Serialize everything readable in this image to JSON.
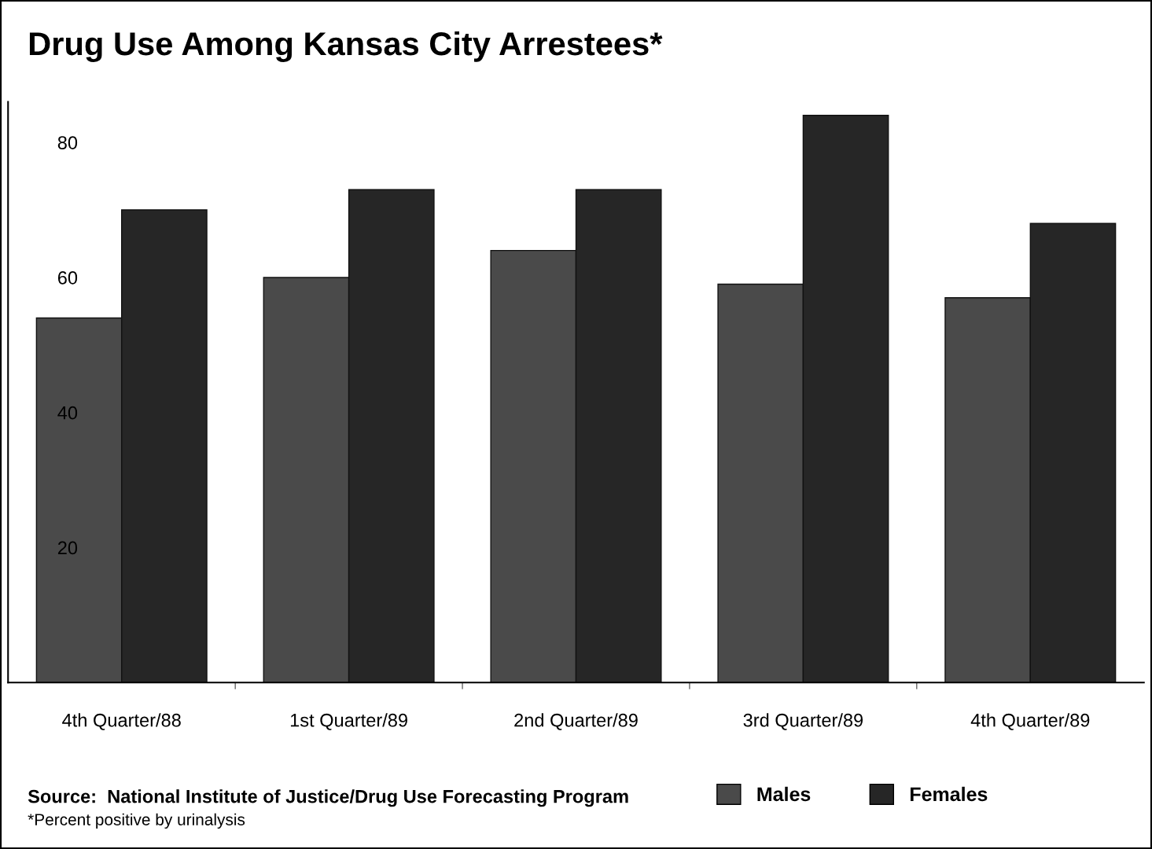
{
  "chart_data": {
    "type": "bar",
    "title": "Drug Use Among Kansas City Arrestees*",
    "categories": [
      "4th Quarter/88",
      "1st Quarter/89",
      "2nd Quarter/89",
      "3rd Quarter/89",
      "4th Quarter/89"
    ],
    "series": [
      {
        "name": "Males",
        "color": "#4a4a4a",
        "values": [
          54,
          60,
          64,
          59,
          57
        ]
      },
      {
        "name": "Females",
        "color": "#262626",
        "values": [
          70,
          73,
          73,
          84,
          68
        ]
      }
    ],
    "ylim": [
      0,
      86
    ],
    "yticks": [
      20,
      40,
      60,
      80
    ],
    "grid": false,
    "legend": "bottom",
    "annotations": [
      "Source:  National Institute of Justice/Drug Use Forecasting Program",
      "*Percent positive by urinalysis"
    ]
  }
}
